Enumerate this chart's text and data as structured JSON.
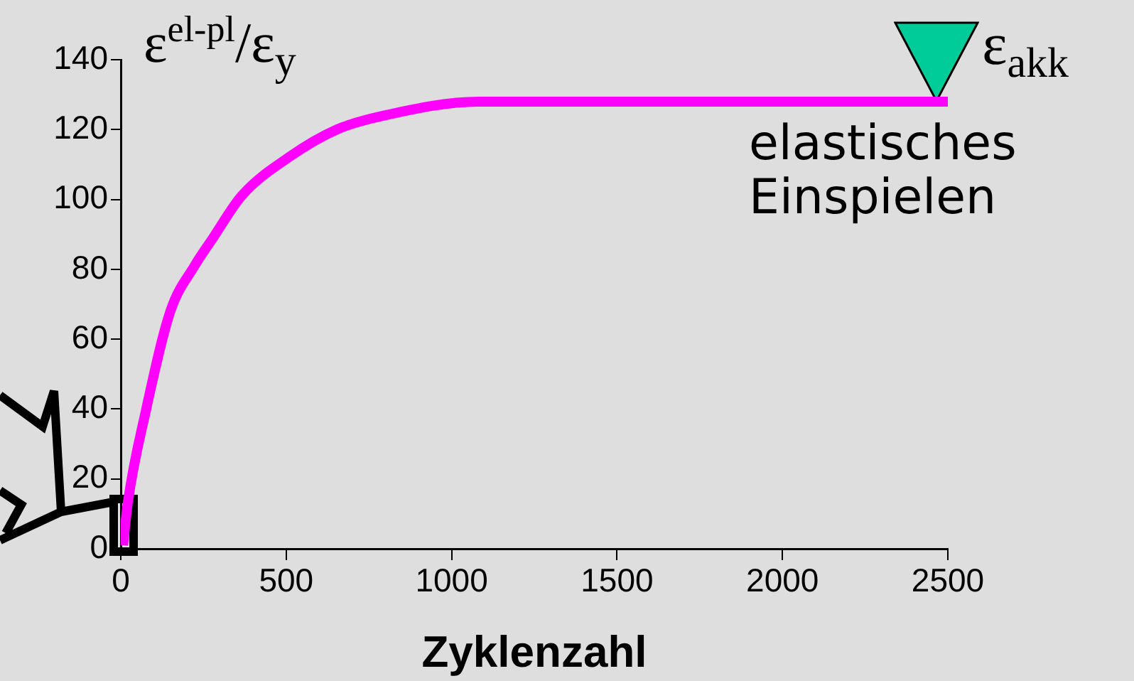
{
  "chart_data": {
    "type": "line",
    "xlabel": "Zyklenzahl",
    "ylabel": "ε$^{el-pl}$/ε$_{y}$",
    "xlim": [
      0,
      2500
    ],
    "xticks": [
      0,
      500,
      1000,
      1500,
      2000,
      2500
    ],
    "ylim": [
      0,
      140
    ],
    "yticks": [
      0,
      20,
      40,
      60,
      80,
      100,
      120,
      140
    ],
    "grid": false,
    "legend": false,
    "marker": "none",
    "line_style": "solid",
    "series": [
      {
        "color": "#ff00ff",
        "x": [
          7,
          21,
          77,
          150,
          223,
          279,
          365,
          507,
          653,
          795,
          1082,
          1654,
          2500
        ],
        "values": [
          1,
          13,
          40,
          68,
          81,
          89,
          101,
          112,
          120,
          124,
          128,
          128,
          128
        ]
      }
    ],
    "annotations": [
      "elastisches Einspielen",
      {
        "text": "ε$_{akk}$",
        "x": 2466,
        "y": 128
      }
    ]
  }
}
